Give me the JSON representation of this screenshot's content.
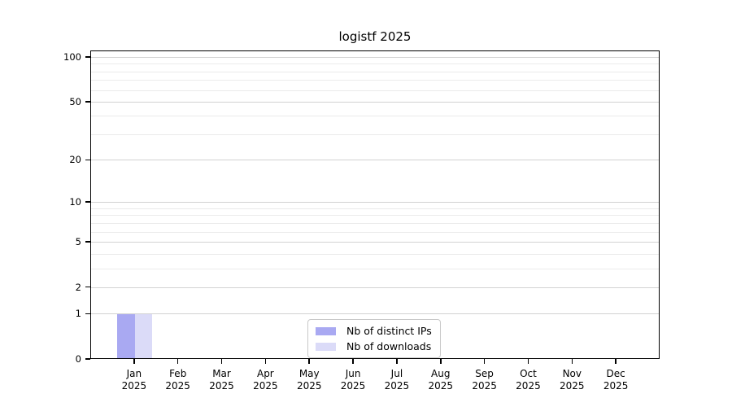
{
  "chart_data": {
    "type": "bar",
    "title": "logistf 2025",
    "categories": [
      "Jan",
      "Feb",
      "Mar",
      "Apr",
      "May",
      "Jun",
      "Jul",
      "Aug",
      "Sep",
      "Oct",
      "Nov",
      "Dec"
    ],
    "category_sub": "2025",
    "series": [
      {
        "name": "Nb of distinct IPs",
        "color": "#a9a9f2",
        "values": [
          1,
          0,
          0,
          0,
          0,
          0,
          0,
          0,
          0,
          0,
          0,
          0
        ]
      },
      {
        "name": "Nb of downloads",
        "color": "#dbdbf8",
        "values": [
          1,
          0,
          0,
          0,
          0,
          0,
          0,
          0,
          0,
          0,
          0,
          0
        ]
      }
    ],
    "yticks": [
      0,
      1,
      2,
      5,
      10,
      20,
      50,
      100
    ],
    "yticks_minor": [
      3,
      4,
      6,
      7,
      8,
      9,
      30,
      40,
      60,
      70,
      80,
      90
    ],
    "ylim": [
      0,
      110
    ],
    "yscale": "log10(1+y)",
    "grid": "horizontal",
    "legend_position": "lower-center"
  }
}
